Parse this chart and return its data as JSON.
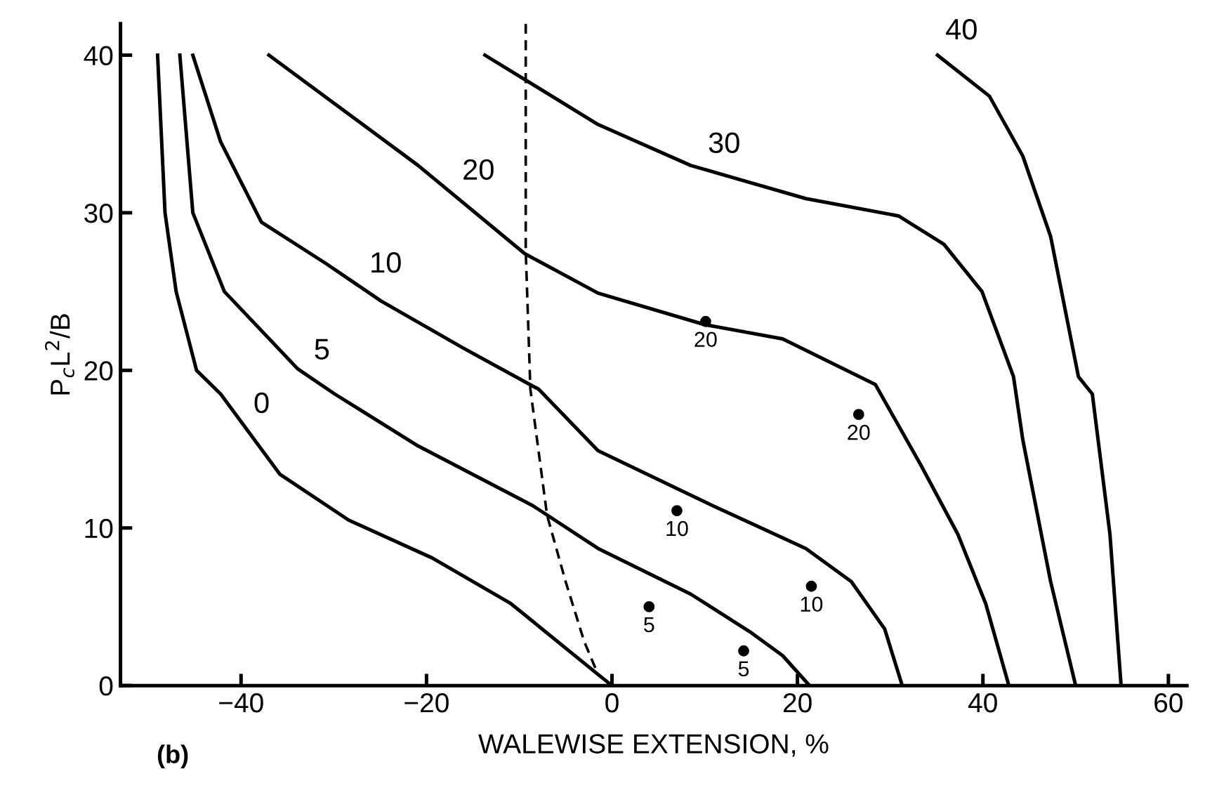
{
  "chart_data": {
    "type": "line",
    "xlabel": "WALEWISE EXTENSION, %",
    "ylabel": "P$_{c}$L$^{2}$/B",
    "xlim": [
      -53,
      62
    ],
    "ylim": [
      0,
      42
    ],
    "xticks": [
      -40,
      -20,
      0,
      20,
      40,
      60
    ],
    "yticks": [
      0,
      10,
      20,
      30,
      40
    ],
    "grid": false,
    "series": [
      {
        "color": "#000000",
        "x": [
          -49,
          -48.2,
          -47,
          -44.8,
          -42.2,
          -35.8,
          -28.4,
          -19.4,
          -10.9,
          -1.5,
          0
        ],
        "values": [
          40,
          30,
          25,
          20,
          18.5,
          13.4,
          10.5,
          8.1,
          5.2,
          0.7,
          0
        ]
      },
      {
        "color": "#000000",
        "x": [
          -46.6,
          -45.2,
          -41.8,
          -33.9,
          -29.9,
          -20.9,
          -8.5,
          -1.5,
          8.5,
          14.9,
          18.4,
          21.3
        ],
        "values": [
          40,
          30,
          25,
          20.1,
          18.5,
          15.2,
          11.4,
          8.7,
          5.8,
          3.4,
          1.9,
          0
        ]
      },
      {
        "color": "#000000",
        "x": [
          -45.2,
          -42.2,
          -37.8,
          -30.9,
          -24.9,
          -16,
          -7.9,
          -1.5,
          10.9,
          20.9,
          25.8,
          29.4,
          31.3
        ],
        "values": [
          40,
          34.5,
          29.4,
          26.8,
          24.4,
          21.4,
          18.8,
          14.9,
          11.4,
          8.7,
          6.6,
          3.6,
          0
        ]
      },
      {
        "color": "#000000",
        "x": [
          -37,
          -20.9,
          -9.4,
          -1.5,
          10,
          18.4,
          28.4,
          33.3,
          37.3,
          40.3,
          42.8
        ],
        "values": [
          40,
          33,
          27.4,
          24.9,
          22.9,
          22,
          19.1,
          14,
          9.6,
          5.2,
          0
        ]
      },
      {
        "color": "#000000",
        "x": [
          -13.7,
          -1.5,
          8.5,
          20.9,
          30.9,
          35.8,
          39.9,
          43.3,
          44.3,
          47.3,
          50
        ],
        "values": [
          40,
          35.6,
          33,
          30.9,
          29.8,
          28,
          25,
          19.6,
          15.6,
          6.6,
          0
        ]
      },
      {
        "color": "#000000",
        "x": [
          35.1,
          40.7,
          44.3,
          47.3,
          50.3,
          51.8,
          53.7,
          54.9
        ],
        "values": [
          40,
          37.4,
          33.6,
          28.5,
          19.6,
          18.5,
          9.6,
          0
        ]
      },
      {
        "color": "#000000",
        "line_style": "dashed",
        "x": [
          -9.3,
          -9.3,
          -9.3,
          -8.8,
          -7,
          -5,
          -3,
          -1.5,
          0
        ],
        "values": [
          42,
          38.2,
          27.6,
          18.8,
          10.8,
          6.6,
          2.8,
          0.7,
          0
        ]
      },
      {
        "type": "scatter",
        "marker": "circle",
        "color": "#000000",
        "x": [
          10.1,
          26.6,
          7,
          21.5,
          4,
          14.2
        ],
        "values": [
          23.1,
          17.2,
          11.1,
          6.3,
          5,
          2.2
        ]
      }
    ],
    "annotations": [
      {
        "text": "0",
        "x": -39.5,
        "y": 16.3
      },
      {
        "text": "5",
        "x": -33,
        "y": 19.7
      },
      {
        "text": "10",
        "x": -27,
        "y": 25.2
      },
      {
        "text": "20",
        "x": -17,
        "y": 31.1
      },
      {
        "text": "30",
        "x": 9.5,
        "y": 32.8
      },
      {
        "text": "40",
        "x": 35.1,
        "y": 40
      },
      {
        "text": "20",
        "x": 10.1,
        "y": 23.1
      },
      {
        "text": "20",
        "x": 26.6,
        "y": 17.2
      },
      {
        "text": "10",
        "x": 7,
        "y": 11.1
      },
      {
        "text": "10",
        "x": 21.5,
        "y": 6.3
      },
      {
        "text": "5",
        "x": 4,
        "y": 5
      },
      {
        "text": "5",
        "x": 14.2,
        "y": 2.2
      },
      "(b)"
    ]
  }
}
